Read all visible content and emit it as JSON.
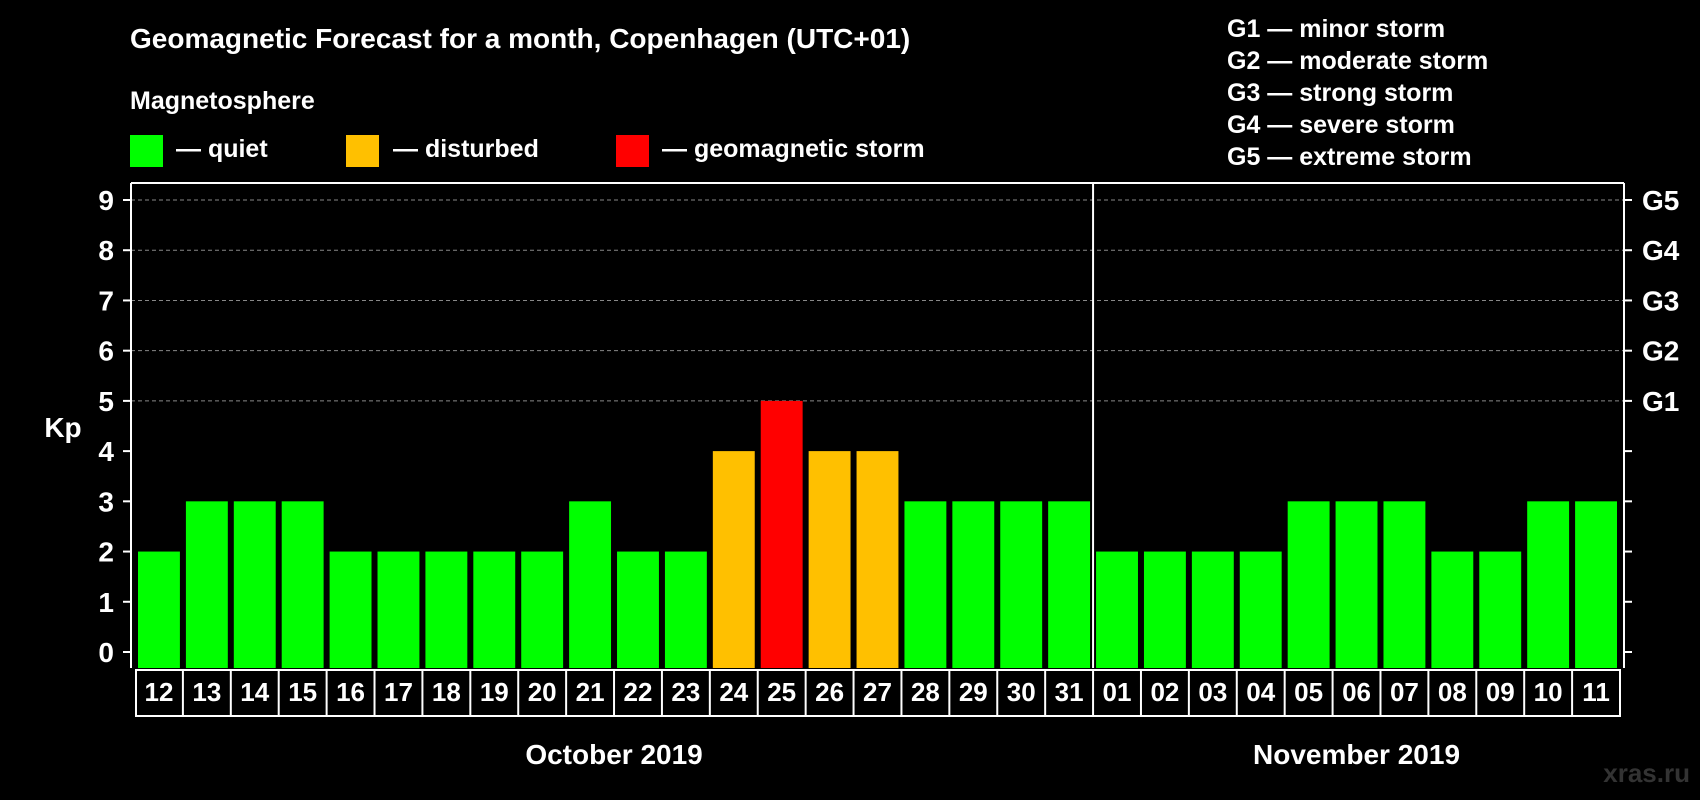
{
  "title": "Geomagnetic Forecast for a month, Copenhagen (UTC+01)",
  "legend": {
    "heading": "Magnetosphere",
    "items": [
      {
        "label": "— quiet",
        "color": "#00ff00"
      },
      {
        "label": "— disturbed",
        "color": "#ffc000"
      },
      {
        "label": "— geomagnetic storm",
        "color": "#ff0000"
      }
    ]
  },
  "storm_scale": [
    "G1 — minor storm",
    "G2 — moderate storm",
    "G3 — strong storm",
    "G4 — severe storm",
    "G5 — extreme storm"
  ],
  "watermark": "xras.ru",
  "chart_data": {
    "type": "bar",
    "title": "Geomagnetic Forecast for a month, Copenhagen (UTC+01)",
    "ylabel": "Kp",
    "xlabel": "",
    "ylim": [
      0,
      9
    ],
    "yticks": [
      "0",
      "1",
      "2",
      "3",
      "4",
      "5",
      "6",
      "7",
      "8",
      "9"
    ],
    "right_ticks": [
      {
        "kp": 5,
        "label": "G1"
      },
      {
        "kp": 6,
        "label": "G2"
      },
      {
        "kp": 7,
        "label": "G3"
      },
      {
        "kp": 8,
        "label": "G4"
      },
      {
        "kp": 9,
        "label": "G5"
      }
    ],
    "categories": [
      "12",
      "13",
      "14",
      "15",
      "16",
      "17",
      "18",
      "19",
      "20",
      "21",
      "22",
      "23",
      "24",
      "25",
      "26",
      "27",
      "28",
      "29",
      "30",
      "31",
      "01",
      "02",
      "03",
      "04",
      "05",
      "06",
      "07",
      "08",
      "09",
      "10",
      "11"
    ],
    "values": [
      2,
      3,
      3,
      3,
      2,
      2,
      2,
      2,
      2,
      3,
      2,
      2,
      4,
      5,
      4,
      4,
      3,
      3,
      3,
      3,
      2,
      2,
      2,
      2,
      3,
      3,
      3,
      2,
      2,
      3,
      3
    ],
    "months": [
      {
        "label": "October 2019",
        "count": 20
      },
      {
        "label": "November 2019",
        "count": 11
      }
    ],
    "colors": {
      "quiet": "#00ff00",
      "disturbed": "#ffc000",
      "storm": "#ff0000"
    }
  }
}
